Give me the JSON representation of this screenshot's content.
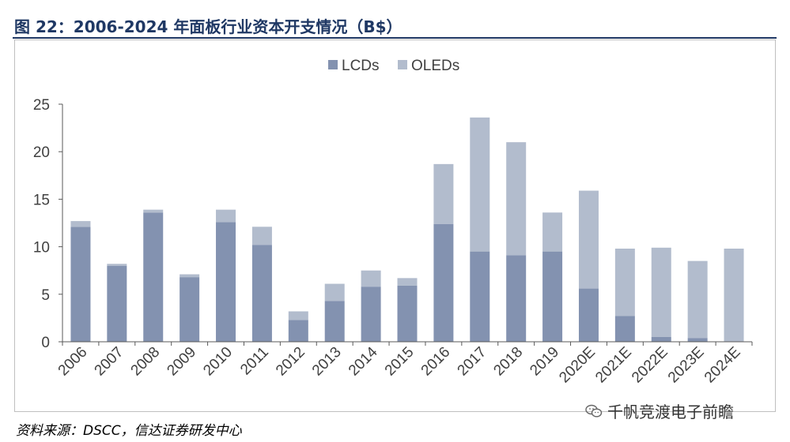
{
  "title": "图 22：2006-2024 年面板行业资本开支情况（B$）",
  "source": "资料来源：DSCC，信达证券研发中心",
  "watermark": {
    "text": "千帆竞渡电子前瞻",
    "icon": "wechat-logo-icon"
  },
  "colors": {
    "title": "#1f3864",
    "lcd": "#8392b0",
    "oled": "#b2bccd",
    "axis": "#595959",
    "text": "#404040"
  },
  "chart_data": {
    "type": "bar",
    "stacked": true,
    "categories": [
      "2006",
      "2007",
      "2008",
      "2009",
      "2010",
      "2011",
      "2012",
      "2013",
      "2014",
      "2015",
      "2016",
      "2017",
      "2018",
      "2019",
      "2020E",
      "2021E",
      "2022E",
      "2023E",
      "2024E"
    ],
    "series": [
      {
        "name": "LCDs",
        "values": [
          12.1,
          8.0,
          13.6,
          6.8,
          12.6,
          10.2,
          2.3,
          4.3,
          5.8,
          5.9,
          12.4,
          9.5,
          9.1,
          9.5,
          5.6,
          2.7,
          0.5,
          0.4,
          0.0
        ]
      },
      {
        "name": "OLEDs",
        "values": [
          0.6,
          0.2,
          0.3,
          0.3,
          1.3,
          1.9,
          0.9,
          1.8,
          1.7,
          0.8,
          6.3,
          14.1,
          11.9,
          4.1,
          10.3,
          7.1,
          9.4,
          8.1,
          9.8
        ]
      }
    ],
    "yticks": [
      "0",
      "5",
      "10",
      "15",
      "20",
      "25"
    ],
    "ylim": [
      0,
      25
    ],
    "legend_position": "top-center",
    "grid": false
  }
}
